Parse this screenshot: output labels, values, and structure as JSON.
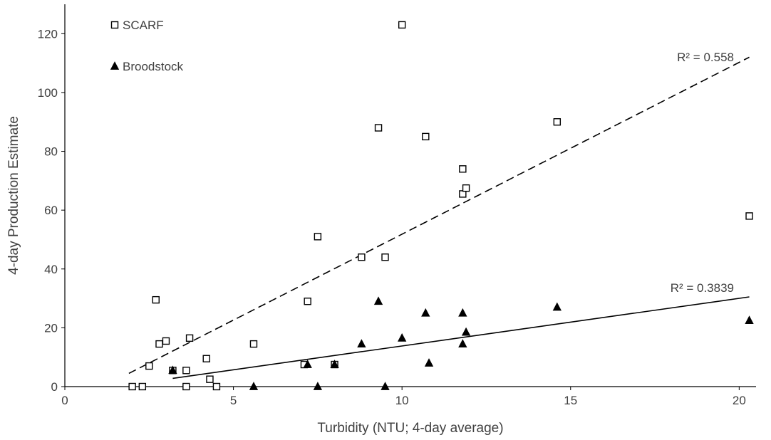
{
  "chart_data": {
    "type": "scatter",
    "title": "",
    "xlabel": "Turbidity (NTU; 4-day average)",
    "ylabel": "4-day Production Estimate",
    "xlim": [
      0,
      20.5
    ],
    "ylim": [
      0,
      130
    ],
    "xticks": [
      0,
      5,
      10,
      15,
      20
    ],
    "yticks": [
      0,
      20,
      40,
      60,
      80,
      100,
      120
    ],
    "grid": false,
    "legend_position": "top-left",
    "series": [
      {
        "name": "SCARF",
        "marker": "open-square",
        "color": "#000000",
        "points": [
          [
            2.0,
            0
          ],
          [
            2.3,
            0
          ],
          [
            2.5,
            7
          ],
          [
            2.7,
            29.5
          ],
          [
            2.8,
            14.5
          ],
          [
            3.0,
            15.5
          ],
          [
            3.2,
            5.5
          ],
          [
            3.6,
            5.5
          ],
          [
            3.6,
            0
          ],
          [
            3.7,
            16.5
          ],
          [
            4.2,
            9.5
          ],
          [
            4.3,
            2.5
          ],
          [
            4.5,
            0
          ],
          [
            5.6,
            14.5
          ],
          [
            7.1,
            7.5
          ],
          [
            7.2,
            29
          ],
          [
            7.5,
            51
          ],
          [
            8.0,
            7.5
          ],
          [
            8.8,
            44
          ],
          [
            9.3,
            88
          ],
          [
            9.5,
            44
          ],
          [
            10.0,
            123
          ],
          [
            10.7,
            85
          ],
          [
            11.8,
            74
          ],
          [
            11.8,
            65.5
          ],
          [
            11.9,
            67.5
          ],
          [
            14.6,
            90
          ],
          [
            20.3,
            58
          ]
        ],
        "trendline": {
          "from": [
            1.9,
            4.5
          ],
          "to": [
            20.3,
            112
          ],
          "style": "dashed"
        },
        "r2_label": "R² = 0.558"
      },
      {
        "name": "Broodstock",
        "marker": "filled-triangle",
        "color": "#000000",
        "points": [
          [
            3.2,
            5.5
          ],
          [
            5.6,
            0
          ],
          [
            7.2,
            7.5
          ],
          [
            7.5,
            0
          ],
          [
            8.0,
            7.5
          ],
          [
            8.8,
            14.5
          ],
          [
            9.3,
            29
          ],
          [
            9.5,
            0
          ],
          [
            10.0,
            16.5
          ],
          [
            10.7,
            25
          ],
          [
            10.8,
            8
          ],
          [
            11.8,
            25
          ],
          [
            11.8,
            14.5
          ],
          [
            11.9,
            18.5
          ],
          [
            14.6,
            27
          ],
          [
            20.3,
            22.5
          ]
        ],
        "trendline": {
          "from": [
            3.2,
            2.8
          ],
          "to": [
            20.3,
            30.5
          ],
          "style": "solid"
        },
        "r2_label": "R² = 0.3839"
      }
    ]
  }
}
